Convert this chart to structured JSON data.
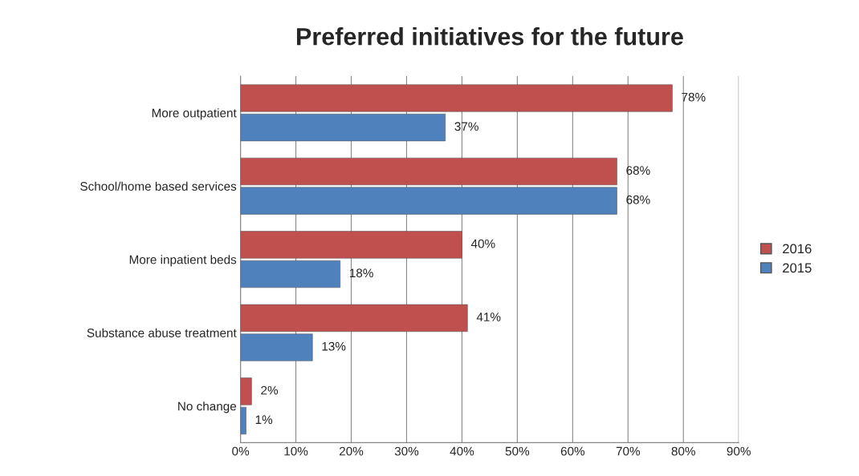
{
  "chart_data": {
    "type": "bar",
    "orientation": "horizontal",
    "title": "Preferred initiatives for the future",
    "categories": [
      "More outpatient",
      "School/home based services",
      "More inpatient beds",
      "Substance abuse treatment",
      "No change"
    ],
    "series": [
      {
        "name": "2016",
        "color": "#c0504d",
        "values": [
          78,
          68,
          40,
          41,
          2
        ],
        "value_labels": [
          "78%",
          "68%",
          "40%",
          "41%",
          "2%"
        ]
      },
      {
        "name": "2015",
        "color": "#4f81bd",
        "values": [
          37,
          68,
          18,
          13,
          1
        ],
        "value_labels": [
          "37%",
          "68%",
          "18%",
          "13%",
          "1%"
        ]
      }
    ],
    "xlim": [
      0,
      90
    ],
    "xticks": [
      {
        "value": 0,
        "label": "0%"
      },
      {
        "value": 10,
        "label": "10%"
      },
      {
        "value": 20,
        "label": "20%"
      },
      {
        "value": 30,
        "label": "30%"
      },
      {
        "value": 40,
        "label": "40%"
      },
      {
        "value": 50,
        "label": "50%"
      },
      {
        "value": 60,
        "label": "60%"
      },
      {
        "value": 70,
        "label": "70%"
      },
      {
        "value": 80,
        "label": "80%"
      },
      {
        "value": 90,
        "label": "90%"
      }
    ],
    "grid": "x",
    "legend": "right"
  }
}
